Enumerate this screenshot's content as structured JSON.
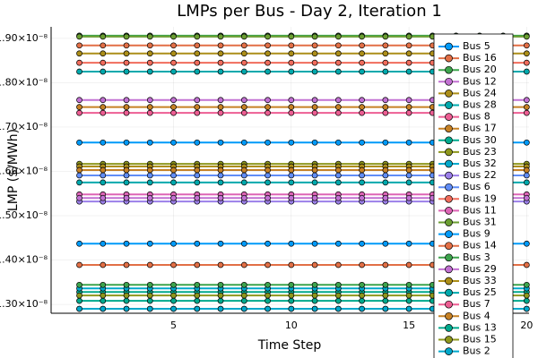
{
  "chart_data": {
    "type": "line",
    "title": "LMPs per Bus - Day 2, Iteration 1",
    "xlabel": "Time Step",
    "ylabel": "LMP ($/MWh)",
    "x": [
      1,
      2,
      3,
      4,
      5,
      6,
      7,
      8,
      9,
      10,
      11,
      12,
      13,
      14,
      15,
      16,
      17,
      18,
      19,
      20
    ],
    "xlim": [
      -0.2,
      20.1
    ],
    "xticks": [
      5,
      10,
      15,
      20
    ],
    "ylim": [
      1.28e-08,
      1.926e-08
    ],
    "yticks": [
      {
        "value": 1.3e-08,
        "label": "1.30×10⁻⁸"
      },
      {
        "value": 1.4e-08,
        "label": "1.40×10⁻⁸"
      },
      {
        "value": 1.5e-08,
        "label": "1.50×10⁻⁸"
      },
      {
        "value": 1.6e-08,
        "label": "1.60×10⁻⁸"
      },
      {
        "value": 1.7e-08,
        "label": "1.70×10⁻⁸"
      },
      {
        "value": 1.8e-08,
        "label": "1.80×10⁻⁸"
      },
      {
        "value": 1.9e-08,
        "label": "1.90×10⁻⁸"
      }
    ],
    "grid": true,
    "legend": "top-right",
    "series": [
      {
        "name": "Bus 5",
        "color": "#009af9",
        "level": 1.665e-08
      },
      {
        "name": "Bus 16",
        "color": "#e26f46",
        "level": 1.884e-08
      },
      {
        "name": "Bus 20",
        "color": "#3da44d",
        "level": 1.906e-08
      },
      {
        "name": "Bus 12",
        "color": "#c271d2",
        "level": 1.761e-08
      },
      {
        "name": "Bus 24",
        "color": "#ac8e18",
        "level": 1.866e-08
      },
      {
        "name": "Bus 28",
        "color": "#00a9ad",
        "level": 1.825e-08
      },
      {
        "name": "Bus 8",
        "color": "#ed5e93",
        "level": 1.732e-08
      },
      {
        "name": "Bus 17",
        "color": "#c68125",
        "level": 1.745e-08
      },
      {
        "name": "Bus 30",
        "color": "#00a98d",
        "level": 1.328e-08
      },
      {
        "name": "Bus 23",
        "color": "#8e971d",
        "level": 1.617e-08
      },
      {
        "name": "Bus 32",
        "color": "#00a8cb",
        "level": 1.336e-08
      },
      {
        "name": "Bus 22",
        "color": "#9b7fe9",
        "level": 1.532e-08
      },
      {
        "name": "Bus 6",
        "color": "#618df6",
        "level": 1.591e-08
      },
      {
        "name": "Bus 19",
        "color": "#f16c5c",
        "level": 1.845e-08
      },
      {
        "name": "Bus 11",
        "color": "#dd64b5",
        "level": 1.548e-08
      },
      {
        "name": "Bus 31",
        "color": "#6b9e32",
        "level": 1.904e-08
      },
      {
        "name": "Bus 9",
        "color": "#009af9",
        "level": 1.437e-08
      },
      {
        "name": "Bus 14",
        "color": "#e26f46",
        "level": 1.389e-08
      },
      {
        "name": "Bus 3",
        "color": "#3da44d",
        "level": 1.344e-08
      },
      {
        "name": "Bus 29",
        "color": "#c271d2",
        "level": 1.54e-08
      },
      {
        "name": "Bus 33",
        "color": "#ac8e18",
        "level": 1.611e-08
      },
      {
        "name": "Bus 25",
        "color": "#00a9ad",
        "level": 1.575e-08
      },
      {
        "name": "Bus 7",
        "color": "#ed5e93",
        "level": 1.29e-08
      },
      {
        "name": "Bus 4",
        "color": "#c68125",
        "level": 1.603e-08
      },
      {
        "name": "Bus 13",
        "color": "#00a98d",
        "level": 1.308e-08
      },
      {
        "name": "Bus 15",
        "color": "#8e971d",
        "level": 1.32e-08
      },
      {
        "name": "Bus 2",
        "color": "#00a8cb",
        "level": 1.29e-08
      }
    ]
  }
}
